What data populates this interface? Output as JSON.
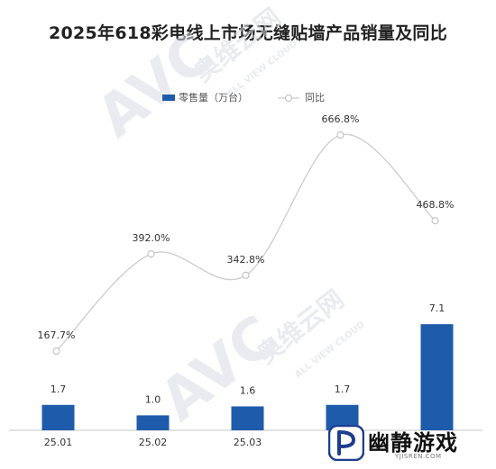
{
  "chart_data": {
    "type": "bar+line",
    "title": "2025年618彩电线上市场无缝贴墙产品销量及同比",
    "categories": [
      "25.01",
      "25.02",
      "25.03",
      "",
      ""
    ],
    "series": [
      {
        "name": "零售量（万台）",
        "type": "bar",
        "values": [
          1.7,
          1.0,
          1.6,
          1.7,
          7.1
        ],
        "color": "#1f5bab"
      },
      {
        "name": "同比",
        "type": "line",
        "values": [
          167.7,
          392.0,
          342.8,
          666.8,
          468.8
        ],
        "color": "#cccccc"
      }
    ],
    "bar_labels": [
      "1.7",
      "1.0",
      "1.6",
      "1.7",
      "7.1"
    ],
    "line_labels": [
      "167.7%",
      "392.0%",
      "342.8%",
      "666.8%",
      "468.8%"
    ],
    "legend": {
      "position": "top-center"
    },
    "grid": false
  },
  "watermark": {
    "brand": "AVC",
    "name": "奥维云网",
    "sub": "ALL VIEW CLOUD"
  },
  "site": {
    "name": "幽静游戏",
    "url": "YJISREN.COM"
  }
}
